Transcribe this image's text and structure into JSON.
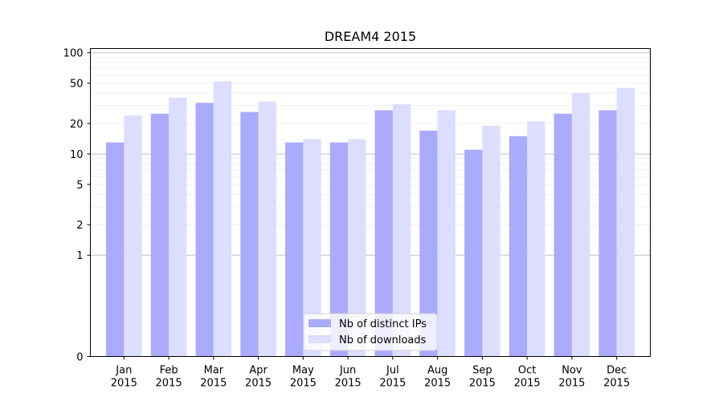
{
  "chart_data": {
    "type": "bar",
    "title": "DREAM4 2015",
    "xlabel": "",
    "ylabel": "",
    "yscale": "symlog",
    "ylim": [
      0,
      110
    ],
    "yticks": [
      0,
      1,
      2,
      5,
      10,
      20,
      50,
      100
    ],
    "ytick_labels": [
      "0",
      "1",
      "2",
      "5",
      "10",
      "20",
      "50",
      "100"
    ],
    "categories": [
      [
        "Jan",
        "2015"
      ],
      [
        "Feb",
        "2015"
      ],
      [
        "Mar",
        "2015"
      ],
      [
        "Apr",
        "2015"
      ],
      [
        "May",
        "2015"
      ],
      [
        "Jun",
        "2015"
      ],
      [
        "Jul",
        "2015"
      ],
      [
        "Aug",
        "2015"
      ],
      [
        "Sep",
        "2015"
      ],
      [
        "Oct",
        "2015"
      ],
      [
        "Nov",
        "2015"
      ],
      [
        "Dec",
        "2015"
      ]
    ],
    "series": [
      {
        "name": "Nb of distinct IPs",
        "color": "#aaaaff",
        "values": [
          13,
          25,
          32,
          26,
          13,
          13,
          27,
          17,
          11,
          15,
          25,
          27
        ]
      },
      {
        "name": "Nb of downloads",
        "color": "#ddddff",
        "values": [
          24,
          36,
          52,
          33,
          14,
          14,
          31,
          27,
          19,
          21,
          40,
          45
        ]
      }
    ],
    "legend_position": "bottom-center",
    "grid": true
  }
}
